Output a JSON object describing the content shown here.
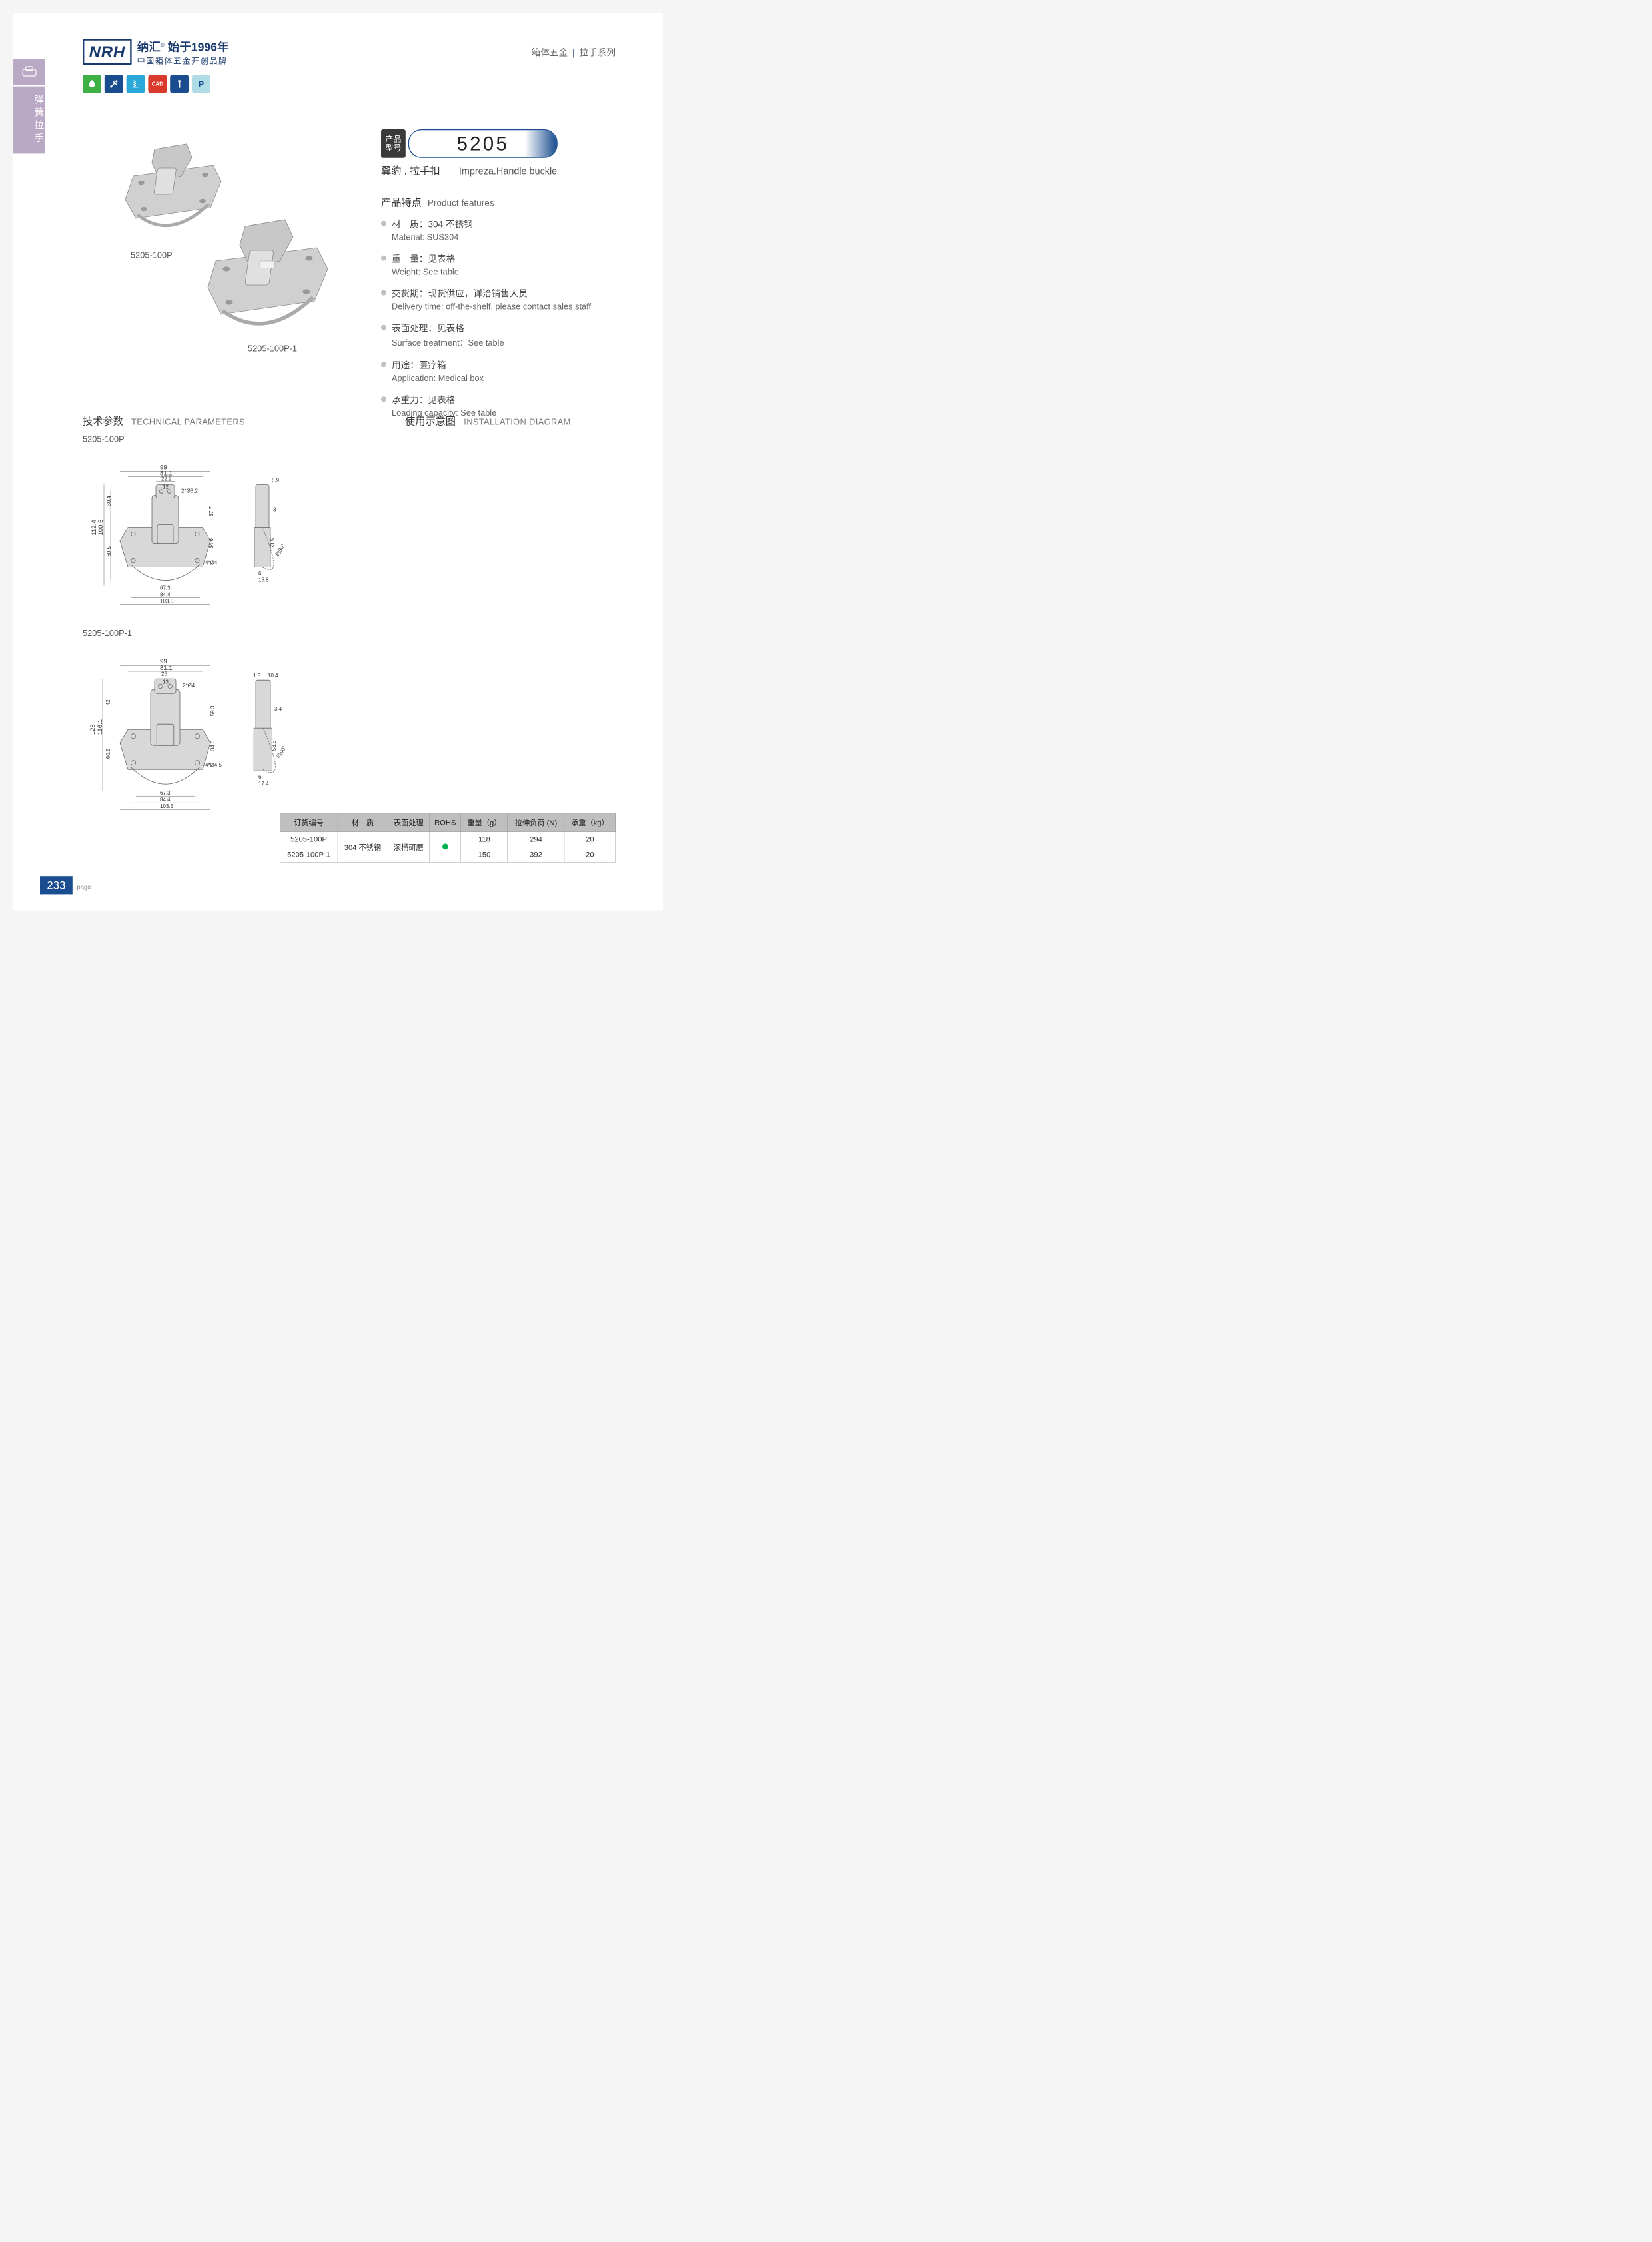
{
  "header": {
    "logo_abbr": "NRH",
    "logo_cn": "纳汇",
    "logo_since": "始于1996年",
    "logo_tagline": "中国箱体五金开创品牌",
    "breadcrumb_1": "箱体五金",
    "breadcrumb_2": "拉手系列"
  },
  "side_tab": "弹簧拉手",
  "icons": [
    {
      "bg": "#3cb043",
      "glyph": "leaf"
    },
    {
      "bg": "#1a4d8f",
      "glyph": "tools"
    },
    {
      "bg": "#2aa8d8",
      "glyph": "spring"
    },
    {
      "bg": "#d93a2b",
      "glyph": "CAD"
    },
    {
      "bg": "#1a4d8f",
      "glyph": "screw"
    },
    {
      "bg": "#b0dce8",
      "glyph": "P"
    }
  ],
  "product": {
    "label1": "5205-100P",
    "label2": "5205-100P-1",
    "model_label_1": "产品",
    "model_label_2": "型号",
    "model_num": "5205",
    "sub_cn": "翼豹 . 拉手扣",
    "sub_en": "Impreza.Handle buckle"
  },
  "features": {
    "title_cn": "产品特点",
    "title_en": "Product features",
    "items": [
      {
        "cn": "材　质：304 不锈钢",
        "en": "Material: SUS304"
      },
      {
        "cn": "重　量：见表格",
        "en": "Weight: See table"
      },
      {
        "cn": "交货期：现货供应，详洽销售人员",
        "en": "Delivery time: off-the-shelf, please contact sales staff"
      },
      {
        "cn": "表面处理：见表格",
        "en": "Surface treatment：See table"
      },
      {
        "cn": "用途：医疗箱",
        "en": "Application: Medical box"
      },
      {
        "cn": "承重力：见表格",
        "en": "Loading capacity: See table"
      }
    ]
  },
  "sections": {
    "tech_cn": "技术参数",
    "tech_en": "TECHNICAL PARAMETERS",
    "install_cn": "使用示意图",
    "install_en": "INSTALLATION DIAGRAM"
  },
  "drawings": {
    "d1": {
      "label": "5205-100P",
      "dims": {
        "w1": "99",
        "w2": "81.1",
        "w3": "22.2",
        "w4": "12",
        "h1": "112.4",
        "h2": "100.5",
        "h3": "30.4",
        "h4": "60.5",
        "h5": "37.7",
        "h6": "34.6",
        "w5": "67.3",
        "w6": "84.4",
        "w7": "103.5",
        "hole1": "2*Ø3.2",
        "hole2": "4*Ø4",
        "side1": "8.9",
        "side2": "3",
        "side3": "53.5",
        "side4": "6",
        "side5": "15.8",
        "angle": "约90°"
      }
    },
    "d2": {
      "label": "5205-100P-1",
      "dims": {
        "w1": "99",
        "w2": "81.1",
        "w3": "26",
        "w4": "13",
        "h1": "128",
        "h2": "116.1",
        "h3": "42",
        "h4": "60.5",
        "h5": "59.3",
        "h6": "34.6",
        "w5": "67.3",
        "w6": "84.4",
        "w7": "103.5",
        "hole1": "2*Ø4",
        "hole2": "4*Ø4.5",
        "side1": "1.5",
        "side2": "10.4",
        "side3": "3.4",
        "side4": "53.5",
        "side5": "6",
        "side6": "17.4",
        "angle": "约90°"
      }
    }
  },
  "table": {
    "headers": [
      "订货编号",
      "材　质",
      "表面处理",
      "ROHS",
      "重量（g）",
      "拉伸负荷 (N)",
      "承重（kg）"
    ],
    "material": "304 不锈钢",
    "surface": "滚桶研磨",
    "rows": [
      {
        "code": "5205-100P",
        "weight": "118",
        "load": "294",
        "cap": "20"
      },
      {
        "code": "5205-100P-1",
        "weight": "150",
        "load": "392",
        "cap": "20"
      }
    ]
  },
  "page_num": "233",
  "page_label": "page"
}
